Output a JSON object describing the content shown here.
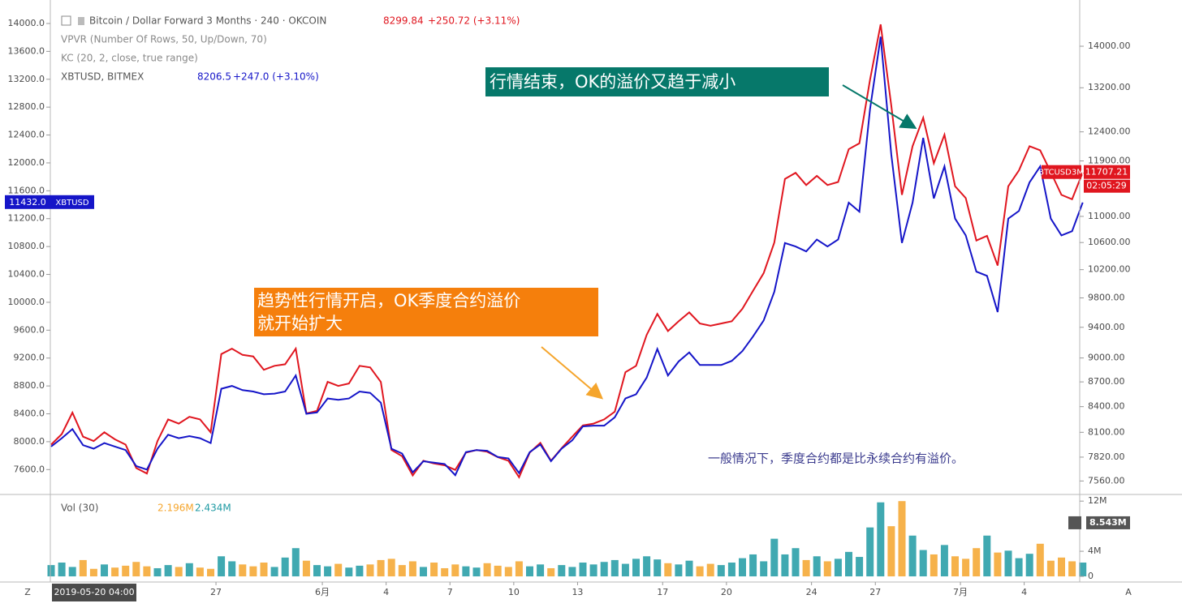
{
  "chart_data": [
    {
      "type": "line",
      "title": "Bitcoin / Dollar Forward 3 Months · 240 · OKCOIN",
      "last_price": "8299.84",
      "change": "+250.72 (+3.11%)",
      "indicators": [
        "VPVR (Number Of Rows, 50, Up/Down, 70)",
        "KC (20, 2, close, true range)"
      ],
      "cursor_time": "2019-05-20 04:00",
      "categories": [
        null,
        null,
        null,
        null,
        null,
        null,
        null,
        null,
        null,
        null,
        null,
        null,
        null,
        null,
        null,
        null,
        "27",
        null,
        null,
        null,
        null,
        null,
        null,
        null,
        null,
        null,
        "6月",
        null,
        null,
        null,
        null,
        null,
        "4",
        null,
        null,
        null,
        null,
        null,
        "7",
        null,
        null,
        null,
        null,
        null,
        "10",
        null,
        null,
        null,
        null,
        null,
        "13",
        null,
        null,
        null,
        null,
        null,
        null,
        null,
        "17",
        null,
        null,
        null,
        null,
        null,
        "20",
        null,
        null,
        null,
        null,
        null,
        null,
        null,
        "24",
        null,
        null,
        null,
        null,
        null,
        "27",
        null,
        null,
        null,
        null,
        null,
        null,
        null,
        "7月",
        null,
        null,
        null,
        null,
        null,
        "4",
        null,
        null,
        null,
        null,
        null
      ],
      "series": [
        {
          "name": "BTCUSD3M",
          "color": "#e0161f",
          "axis": "y2",
          "countdown": "02:05:29",
          "last_value": 11707.21,
          "values": [
            7960,
            8080,
            8330,
            8050,
            8000,
            8100,
            8020,
            7960,
            7700,
            7640,
            8000,
            8250,
            8200,
            8280,
            8250,
            8100,
            9050,
            9120,
            9040,
            9020,
            8850,
            8900,
            8920,
            9120,
            8320,
            8350,
            8700,
            8650,
            8680,
            8900,
            8880,
            8700,
            7900,
            7830,
            7620,
            7780,
            7750,
            7730,
            7680,
            7870,
            7900,
            7880,
            7820,
            7780,
            7600,
            7870,
            7980,
            7780,
            7920,
            8050,
            8180,
            8200,
            8250,
            8340,
            8820,
            8900,
            9300,
            9580,
            9350,
            9480,
            9600,
            9450,
            9420,
            9450,
            9480,
            9650,
            9900,
            10150,
            10600,
            11600,
            11700,
            11500,
            11650,
            11500,
            11550,
            12100,
            12200,
            13350,
            14440,
            12870,
            11340,
            12150,
            12650,
            11860,
            12350,
            11480,
            11290,
            10630,
            10700,
            10260,
            11480,
            11740,
            12150,
            12080,
            11710,
            11340,
            11270,
            11707.21
          ]
        },
        {
          "name": "XBTUSD",
          "legend_label": "XBTUSD, BITMEX",
          "quote": "8206.5",
          "change": "+247.0 (+3.10%)",
          "color": "#1515c8",
          "axis": "y",
          "last_value": {
            "value": 11432,
            "label": "11432.0"
          },
          "values": [
            7930,
            8050,
            8180,
            7950,
            7900,
            7980,
            7930,
            7880,
            7650,
            7600,
            7900,
            8100,
            8050,
            8080,
            8050,
            7980,
            8760,
            8800,
            8740,
            8720,
            8680,
            8690,
            8720,
            8950,
            8400,
            8420,
            8620,
            8600,
            8620,
            8720,
            8700,
            8560,
            7900,
            7830,
            7560,
            7720,
            7700,
            7680,
            7520,
            7850,
            7880,
            7870,
            7780,
            7760,
            7550,
            7850,
            7960,
            7720,
            7900,
            8020,
            8220,
            8230,
            8230,
            8350,
            8620,
            8680,
            8920,
            9330,
            8950,
            9150,
            9280,
            9100,
            9100,
            9100,
            9160,
            9300,
            9510,
            9740,
            10150,
            10850,
            10800,
            10730,
            10900,
            10800,
            10900,
            11430,
            11300,
            12770,
            13810,
            12120,
            10850,
            11430,
            12360,
            11490,
            11950,
            11200,
            10960,
            10440,
            10380,
            9860,
            11200,
            11310,
            11720,
            11950,
            11200,
            10960,
            11020,
            11432
          ]
        }
      ],
      "ylim": [
        7243,
        14337
      ],
      "yticks": [
        {
          "value": 7600,
          "label": "7600.0"
        },
        {
          "value": 8000,
          "label": "8000.0"
        },
        {
          "value": 8400,
          "label": "8400.0"
        },
        {
          "value": 8800,
          "label": "8800.0"
        },
        {
          "value": 9200,
          "label": "9200.0"
        },
        {
          "value": 9600,
          "label": "9600.0"
        },
        {
          "value": 10000,
          "label": "10000.0"
        },
        {
          "value": 10400,
          "label": "10400.0"
        },
        {
          "value": 10800,
          "label": "10800.0"
        },
        {
          "value": 11200,
          "label": "11200.0"
        },
        {
          "value": 11600,
          "label": "11600.0"
        },
        {
          "value": 12000,
          "label": "12000.0"
        },
        {
          "value": 12400,
          "label": "12400.0"
        },
        {
          "value": 12800,
          "label": "12800.0"
        },
        {
          "value": 13200,
          "label": "13200.0"
        },
        {
          "value": 13600,
          "label": "13600.0"
        },
        {
          "value": 14000,
          "label": "14000.0"
        }
      ],
      "y2lim": [
        7417,
        14948
      ],
      "y2_log": true,
      "y2ticks": [
        {
          "value": 7560,
          "label": "7560.00"
        },
        {
          "value": 7820,
          "label": "7820.00"
        },
        {
          "value": 8100,
          "label": "8100.00"
        },
        {
          "value": 8400,
          "label": "8400.00"
        },
        {
          "value": 8700,
          "label": "8700.00"
        },
        {
          "value": 9000,
          "label": "9000.00"
        },
        {
          "value": 9400,
          "label": "9400.00"
        },
        {
          "value": 9800,
          "label": "9800.00"
        },
        {
          "value": 10200,
          "label": "10200.00"
        },
        {
          "value": 10600,
          "label": "10600.00"
        },
        {
          "value": 11000,
          "label": "11000.00"
        },
        {
          "value": 11900,
          "label": "11900.00"
        },
        {
          "value": 12400,
          "label": "12400.00"
        },
        {
          "value": 13200,
          "label": "13200.00"
        },
        {
          "value": 14000,
          "label": "14000.00"
        }
      ],
      "annotations": [
        {
          "lines": [
            "行情结束，OK的溢价又趋于减小"
          ],
          "color": "#06786a"
        },
        {
          "lines": [
            "趋势性行情开启，OK季度合约溢价",
            "就开始扩大"
          ],
          "color": "#f57f0c"
        },
        {
          "lines": [
            "一般情况下，季度合约都是比永续合约有溢价。"
          ],
          "color": "#3b3b8e"
        }
      ]
    },
    {
      "type": "bar",
      "title": "Vol (30)",
      "legend_values": [
        "2.196M",
        "2.434M"
      ],
      "up_color": "#1f9aa3",
      "down_color": "#f5a52c",
      "marker": {
        "value": 8.543,
        "label": "8.543M"
      },
      "values": [
        1.8,
        2.2,
        1.5,
        2.6,
        1.2,
        1.9,
        1.4,
        1.7,
        2.3,
        1.6,
        1.3,
        1.8,
        1.5,
        2.1,
        1.4,
        1.2,
        3.2,
        2.4,
        1.9,
        1.6,
        2.2,
        1.5,
        3.0,
        4.5,
        2.5,
        1.8,
        1.6,
        2.0,
        1.4,
        1.7,
        1.9,
        2.6,
        2.8,
        1.8,
        2.4,
        1.5,
        2.2,
        1.3,
        1.9,
        1.6,
        1.4,
        2.1,
        1.7,
        1.5,
        2.4,
        1.6,
        1.9,
        1.3,
        1.8,
        1.5,
        2.2,
        1.9,
        2.3,
        2.6,
        2.0,
        2.8,
        3.2,
        2.7,
        2.1,
        1.9,
        2.5,
        1.6,
        2.0,
        1.8,
        2.2,
        2.9,
        3.5,
        2.4,
        6.0,
        3.5,
        4.5,
        2.6,
        3.2,
        2.4,
        2.8,
        3.9,
        3.1,
        7.8,
        11.8,
        8.0,
        12.0,
        6.5,
        4.2,
        3.5,
        5.0,
        3.2,
        2.8,
        4.5,
        6.5,
        3.8,
        4.1,
        2.9,
        3.6,
        5.2,
        2.5,
        3.0,
        2.4,
        2.2
      ],
      "ylim": [
        -0.9,
        12.8
      ],
      "yticks": [
        0,
        {
          "value": 4,
          "label": "4M"
        },
        {
          "value": 12,
          "label": "12M"
        }
      ]
    }
  ],
  "ui": {
    "left_button": "Z",
    "right_button": "A"
  }
}
